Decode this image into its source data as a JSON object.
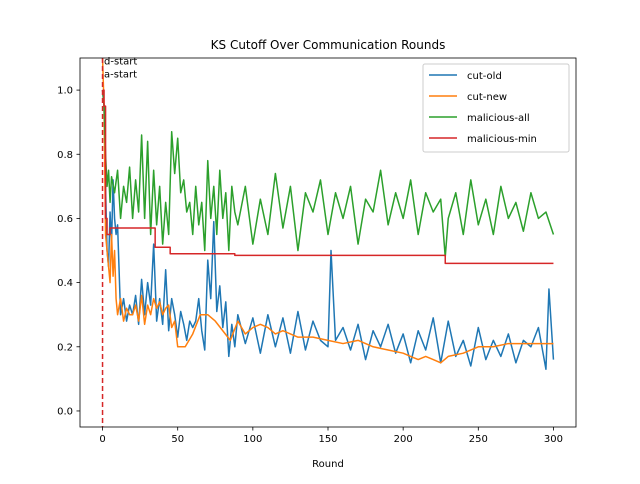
{
  "chart_data": {
    "type": "line",
    "title": "KS Cutoff Over Communication Rounds",
    "xlabel": "Round",
    "ylabel": "",
    "xlim": [
      -15,
      315
    ],
    "ylim": [
      -0.05,
      1.1
    ],
    "xticks": [
      0,
      50,
      100,
      150,
      200,
      250,
      300
    ],
    "yticks": [
      0.0,
      0.2,
      0.4,
      0.6,
      0.8,
      1.0
    ],
    "xtick_labels": [
      "0",
      "50",
      "100",
      "150",
      "200",
      "250",
      "300"
    ],
    "ytick_labels": [
      "0.0",
      "0.2",
      "0.4",
      "0.6",
      "0.8",
      "1.0"
    ],
    "grid": false,
    "legend_position": "upper right",
    "series": [
      {
        "name": "cut-old",
        "color": "#1f77b4",
        "x": [
          0,
          1,
          2,
          3,
          4,
          5,
          6,
          7,
          8,
          9,
          10,
          12,
          14,
          16,
          18,
          20,
          22,
          24,
          26,
          28,
          30,
          32,
          34,
          36,
          38,
          40,
          42,
          44,
          46,
          48,
          50,
          52,
          54,
          56,
          58,
          60,
          62,
          64,
          66,
          68,
          70,
          72,
          74,
          76,
          78,
          80,
          82,
          84,
          86,
          88,
          90,
          95,
          100,
          105,
          110,
          115,
          120,
          125,
          130,
          135,
          140,
          145,
          150,
          152,
          155,
          160,
          165,
          170,
          175,
          180,
          185,
          190,
          195,
          200,
          205,
          210,
          215,
          220,
          225,
          230,
          235,
          240,
          245,
          250,
          255,
          260,
          265,
          270,
          275,
          280,
          285,
          290,
          295,
          297,
          300
        ],
        "y": [
          1.0,
          0.95,
          0.7,
          0.5,
          0.45,
          0.62,
          0.52,
          0.72,
          0.6,
          0.55,
          0.58,
          0.3,
          0.35,
          0.28,
          0.33,
          0.3,
          0.36,
          0.27,
          0.41,
          0.3,
          0.4,
          0.33,
          0.52,
          0.28,
          0.35,
          0.27,
          0.44,
          0.25,
          0.35,
          0.3,
          0.23,
          0.31,
          0.27,
          0.22,
          0.28,
          0.26,
          0.28,
          0.35,
          0.25,
          0.19,
          0.47,
          0.35,
          0.59,
          0.31,
          0.39,
          0.26,
          0.34,
          0.17,
          0.27,
          0.2,
          0.3,
          0.21,
          0.29,
          0.18,
          0.3,
          0.2,
          0.29,
          0.18,
          0.31,
          0.19,
          0.28,
          0.22,
          0.2,
          0.5,
          0.22,
          0.26,
          0.19,
          0.27,
          0.16,
          0.25,
          0.2,
          0.27,
          0.18,
          0.24,
          0.15,
          0.25,
          0.19,
          0.29,
          0.15,
          0.28,
          0.17,
          0.22,
          0.14,
          0.26,
          0.16,
          0.22,
          0.17,
          0.24,
          0.15,
          0.22,
          0.2,
          0.26,
          0.13,
          0.38,
          0.16
        ]
      },
      {
        "name": "cut-new",
        "color": "#ff7f0e",
        "x": [
          0,
          1,
          2,
          3,
          4,
          5,
          6,
          7,
          8,
          9,
          10,
          12,
          14,
          16,
          18,
          20,
          22,
          24,
          26,
          28,
          30,
          32,
          34,
          36,
          38,
          40,
          42,
          44,
          46,
          48,
          50,
          55,
          60,
          65,
          70,
          75,
          80,
          85,
          90,
          95,
          100,
          105,
          110,
          115,
          120,
          125,
          130,
          140,
          150,
          160,
          170,
          180,
          190,
          200,
          205,
          210,
          215,
          220,
          225,
          230,
          240,
          250,
          260,
          270,
          280,
          290,
          300
        ],
        "y": [
          1.1,
          0.95,
          0.55,
          0.5,
          0.45,
          0.4,
          0.55,
          0.42,
          0.5,
          0.35,
          0.3,
          0.35,
          0.28,
          0.32,
          0.3,
          0.3,
          0.33,
          0.28,
          0.36,
          0.27,
          0.33,
          0.3,
          0.35,
          0.32,
          0.34,
          0.3,
          0.32,
          0.33,
          0.26,
          0.28,
          0.2,
          0.2,
          0.24,
          0.3,
          0.3,
          0.28,
          0.25,
          0.22,
          0.28,
          0.24,
          0.26,
          0.27,
          0.26,
          0.24,
          0.25,
          0.24,
          0.23,
          0.23,
          0.22,
          0.21,
          0.22,
          0.2,
          0.19,
          0.18,
          0.17,
          0.16,
          0.17,
          0.16,
          0.15,
          0.17,
          0.18,
          0.2,
          0.2,
          0.21,
          0.21,
          0.21,
          0.21
        ]
      },
      {
        "name": "malicious-all",
        "color": "#2ca02c",
        "x": [
          0,
          1,
          2,
          3,
          4,
          5,
          6,
          8,
          10,
          12,
          14,
          16,
          18,
          20,
          22,
          24,
          26,
          28,
          30,
          32,
          34,
          36,
          38,
          40,
          42,
          44,
          46,
          48,
          50,
          52,
          54,
          56,
          58,
          60,
          62,
          64,
          66,
          68,
          70,
          72,
          74,
          76,
          78,
          80,
          82,
          84,
          86,
          88,
          90,
          95,
          100,
          105,
          110,
          115,
          120,
          125,
          130,
          135,
          140,
          145,
          150,
          155,
          160,
          165,
          170,
          175,
          180,
          185,
          190,
          195,
          200,
          205,
          210,
          215,
          220,
          225,
          228,
          230,
          235,
          240,
          245,
          250,
          255,
          260,
          265,
          270,
          275,
          280,
          285,
          290,
          295,
          300
        ],
        "y": [
          1.0,
          0.95,
          0.8,
          0.7,
          0.75,
          0.65,
          0.73,
          0.68,
          0.75,
          0.6,
          0.7,
          0.65,
          0.76,
          0.6,
          0.72,
          0.62,
          0.86,
          0.6,
          0.84,
          0.55,
          0.75,
          0.58,
          0.7,
          0.52,
          0.65,
          0.55,
          0.87,
          0.74,
          0.85,
          0.68,
          0.72,
          0.62,
          0.65,
          0.55,
          0.7,
          0.58,
          0.65,
          0.5,
          0.78,
          0.6,
          0.7,
          0.55,
          0.75,
          0.6,
          0.68,
          0.5,
          0.7,
          0.62,
          0.58,
          0.7,
          0.52,
          0.66,
          0.55,
          0.74,
          0.57,
          0.7,
          0.5,
          0.68,
          0.62,
          0.72,
          0.55,
          0.68,
          0.6,
          0.7,
          0.52,
          0.66,
          0.62,
          0.75,
          0.58,
          0.68,
          0.6,
          0.72,
          0.55,
          0.68,
          0.62,
          0.66,
          0.48,
          0.6,
          0.68,
          0.55,
          0.72,
          0.58,
          0.66,
          0.55,
          0.7,
          0.6,
          0.65,
          0.56,
          0.68,
          0.6,
          0.62,
          0.55
        ]
      },
      {
        "name": "malicious-min",
        "color": "#d62728",
        "x": [
          0,
          1,
          1,
          2,
          2,
          3,
          3,
          5,
          5,
          35,
          35,
          45,
          45,
          88,
          88,
          228,
          228,
          300
        ],
        "y": [
          1.0,
          1.0,
          0.95,
          0.95,
          0.6,
          0.6,
          0.55,
          0.55,
          0.57,
          0.57,
          0.51,
          0.51,
          0.49,
          0.49,
          0.485,
          0.485,
          0.46,
          0.46
        ]
      }
    ],
    "vlines": [
      {
        "x": 0,
        "color": "#d62728",
        "style": "dashed"
      }
    ],
    "annotations": [
      {
        "text": "d-start",
        "x": 1,
        "y": 1.08
      },
      {
        "text": "a-start",
        "x": 1,
        "y": 1.04
      }
    ]
  }
}
